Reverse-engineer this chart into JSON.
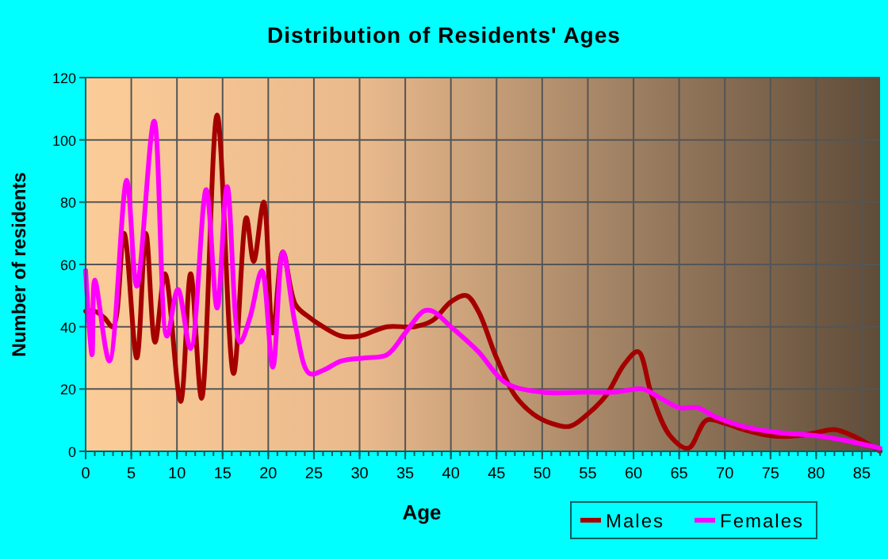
{
  "chart_data": {
    "type": "line",
    "title": "Distribution of Residents' Ages",
    "xlabel": "Age",
    "ylabel": "Number of residents",
    "xlim": [
      0,
      87
    ],
    "xticks": [
      0,
      5,
      10,
      15,
      20,
      25,
      30,
      35,
      40,
      45,
      50,
      55,
      60,
      65,
      70,
      75,
      80,
      85
    ],
    "ylim": [
      0,
      120
    ],
    "yticks": [
      0,
      20,
      40,
      60,
      80,
      100,
      120
    ],
    "grid": true,
    "legend": "bottom right",
    "marker": "none",
    "line_style": "solid",
    "series": [
      {
        "name": "Males",
        "color": "#a50000",
        "x": [
          0,
          1,
          2,
          3,
          4.2,
          5.6,
          6.6,
          7.6,
          8.7,
          10.4,
          11.5,
          12.7,
          14.4,
          16.2,
          17.6,
          18.4,
          19.5,
          20.5,
          21.6,
          23,
          24.5,
          26,
          28,
          30,
          33,
          36,
          38,
          40,
          41.7,
          43,
          45,
          47,
          49,
          51,
          53,
          55,
          57,
          59,
          60.5,
          62,
          64,
          66,
          68,
          70,
          72,
          75,
          78,
          80,
          82,
          84,
          87
        ],
        "values": [
          45,
          45,
          43,
          40,
          70,
          30,
          70,
          35,
          57,
          16,
          57,
          17,
          108,
          25,
          75,
          61,
          80,
          38,
          64,
          47,
          43,
          40,
          37,
          37,
          40,
          40,
          42,
          48,
          50,
          45,
          30,
          18,
          12,
          9,
          8,
          12,
          18,
          28,
          32,
          18,
          5,
          1,
          10,
          9,
          7,
          5,
          5,
          6,
          7,
          5,
          0
        ]
      },
      {
        "name": "Females",
        "color": "#ff00ff",
        "x": [
          0,
          0.7,
          1,
          2.6,
          4.5,
          5.6,
          7.5,
          8.9,
          10.1,
          11.5,
          13.2,
          14.4,
          15.5,
          16.9,
          18,
          19.3,
          20.5,
          21.6,
          23,
          24.5,
          26,
          28,
          30.6,
          33,
          35,
          37,
          38,
          40,
          43,
          46,
          50,
          55,
          58,
          61,
          63,
          65,
          67,
          69,
          72,
          76,
          80,
          84,
          87
        ],
        "values": [
          58,
          31,
          55,
          29,
          87,
          53,
          106,
          37,
          52,
          33,
          84,
          46,
          85,
          35,
          43,
          58,
          27,
          64,
          40,
          25,
          26,
          29,
          30,
          31,
          38,
          45,
          45,
          40,
          32,
          22,
          19,
          19,
          19,
          20,
          17,
          14,
          14,
          11,
          8,
          6,
          5,
          3,
          1
        ]
      }
    ]
  }
}
